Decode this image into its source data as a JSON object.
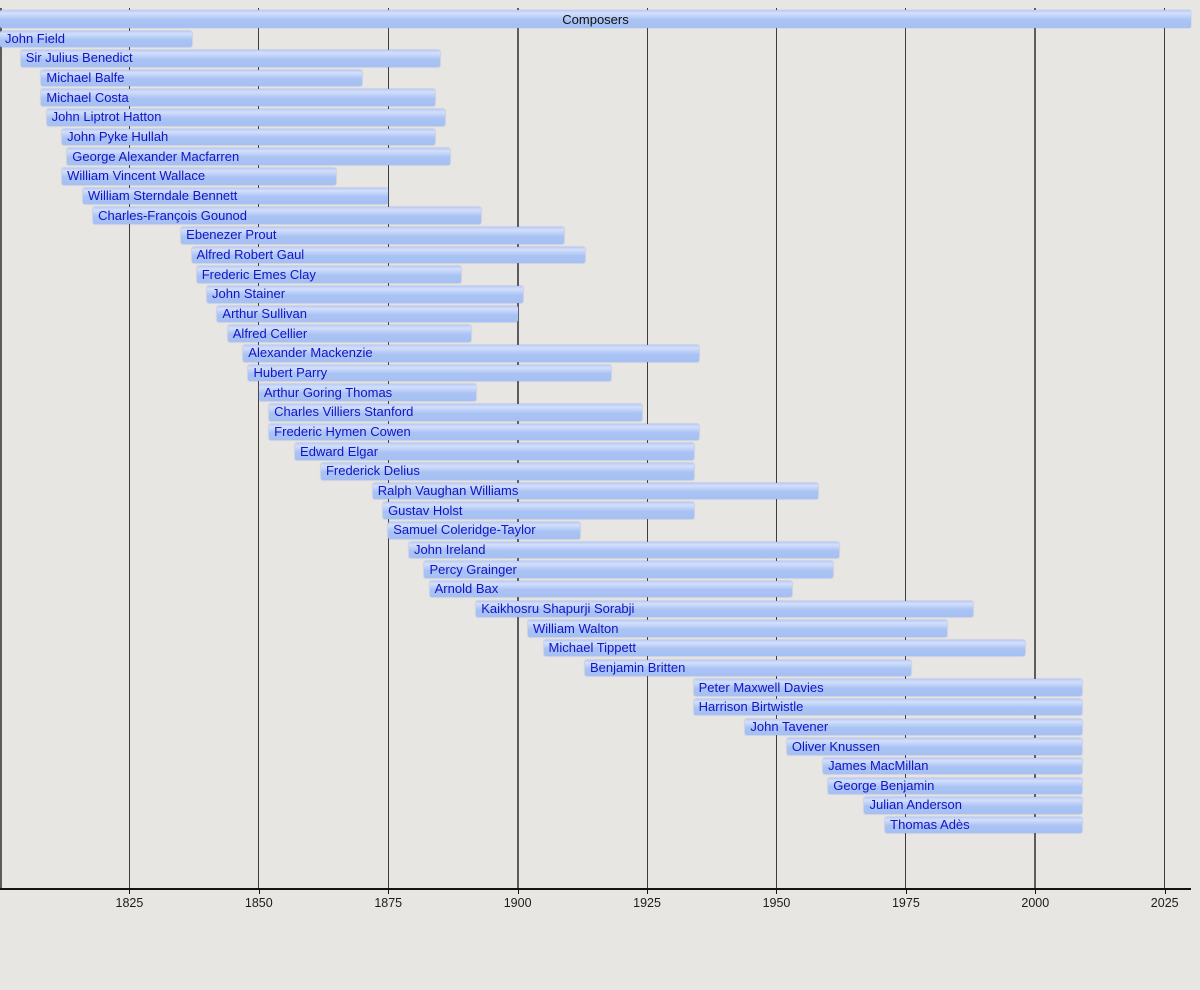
{
  "page": {
    "background_color": "#e7e6e3",
    "bar_color": "#a9c3f4",
    "label_color": "#1414c4",
    "gridline_minor_color": "#3c3c3c",
    "gridline_major_color": "#5c5c5c"
  },
  "chart_data": {
    "type": "timeline",
    "title": "Composers",
    "xlabel": "",
    "ylabel": "",
    "x_domain": [
      1800,
      2030
    ],
    "present_year": 2009,
    "axis_ticks": [
      1825,
      1850,
      1875,
      1900,
      1925,
      1950,
      1975,
      2000,
      2025
    ],
    "major_gridline_years": [
      1800,
      1900,
      2000
    ],
    "grid": true,
    "legend": false,
    "composers": [
      {
        "name": "John Field",
        "born": 1782,
        "died": 1837
      },
      {
        "name": "Sir Julius Benedict",
        "born": 1804,
        "died": 1885
      },
      {
        "name": "Michael Balfe",
        "born": 1808,
        "died": 1870
      },
      {
        "name": "Michael Costa",
        "born": 1808,
        "died": 1884
      },
      {
        "name": "John Liptrot Hatton",
        "born": 1809,
        "died": 1886
      },
      {
        "name": "John Pyke Hullah",
        "born": 1812,
        "died": 1884
      },
      {
        "name": "George Alexander Macfarren",
        "born": 1813,
        "died": 1887
      },
      {
        "name": "William Vincent Wallace",
        "born": 1812,
        "died": 1865
      },
      {
        "name": "William Sterndale Bennett",
        "born": 1816,
        "died": 1875
      },
      {
        "name": "Charles-François Gounod",
        "born": 1818,
        "died": 1893
      },
      {
        "name": "Ebenezer Prout",
        "born": 1835,
        "died": 1909
      },
      {
        "name": "Alfred Robert Gaul",
        "born": 1837,
        "died": 1913
      },
      {
        "name": "Frederic Emes Clay",
        "born": 1838,
        "died": 1889
      },
      {
        "name": "John Stainer",
        "born": 1840,
        "died": 1901
      },
      {
        "name": "Arthur Sullivan",
        "born": 1842,
        "died": 1900
      },
      {
        "name": "Alfred Cellier",
        "born": 1844,
        "died": 1891
      },
      {
        "name": "Alexander Mackenzie",
        "born": 1847,
        "died": 1935
      },
      {
        "name": "Hubert Parry",
        "born": 1848,
        "died": 1918
      },
      {
        "name": "Arthur Goring Thomas",
        "born": 1850,
        "died": 1892
      },
      {
        "name": "Charles Villiers Stanford",
        "born": 1852,
        "died": 1924
      },
      {
        "name": "Frederic Hymen Cowen",
        "born": 1852,
        "died": 1935
      },
      {
        "name": "Edward Elgar",
        "born": 1857,
        "died": 1934
      },
      {
        "name": "Frederick Delius",
        "born": 1862,
        "died": 1934
      },
      {
        "name": "Ralph Vaughan Williams",
        "born": 1872,
        "died": 1958
      },
      {
        "name": "Gustav Holst",
        "born": 1874,
        "died": 1934
      },
      {
        "name": "Samuel Coleridge-Taylor",
        "born": 1875,
        "died": 1912
      },
      {
        "name": "John Ireland",
        "born": 1879,
        "died": 1962
      },
      {
        "name": "Percy Grainger",
        "born": 1882,
        "died": 1961
      },
      {
        "name": "Arnold Bax",
        "born": 1883,
        "died": 1953
      },
      {
        "name": "Kaikhosru Shapurji Sorabji",
        "born": 1892,
        "died": 1988
      },
      {
        "name": "William Walton",
        "born": 1902,
        "died": 1983
      },
      {
        "name": "Michael Tippett",
        "born": 1905,
        "died": 1998
      },
      {
        "name": "Benjamin Britten",
        "born": 1913,
        "died": 1976
      },
      {
        "name": "Peter Maxwell Davies",
        "born": 1934,
        "died": null
      },
      {
        "name": "Harrison Birtwistle",
        "born": 1934,
        "died": null
      },
      {
        "name": "John Tavener",
        "born": 1944,
        "died": null
      },
      {
        "name": "Oliver Knussen",
        "born": 1952,
        "died": null
      },
      {
        "name": "James MacMillan",
        "born": 1959,
        "died": null
      },
      {
        "name": "George Benjamin",
        "born": 1960,
        "died": null
      },
      {
        "name": "Julian Anderson",
        "born": 1967,
        "died": null
      },
      {
        "name": "Thomas Adès",
        "born": 1971,
        "died": null
      }
    ]
  }
}
